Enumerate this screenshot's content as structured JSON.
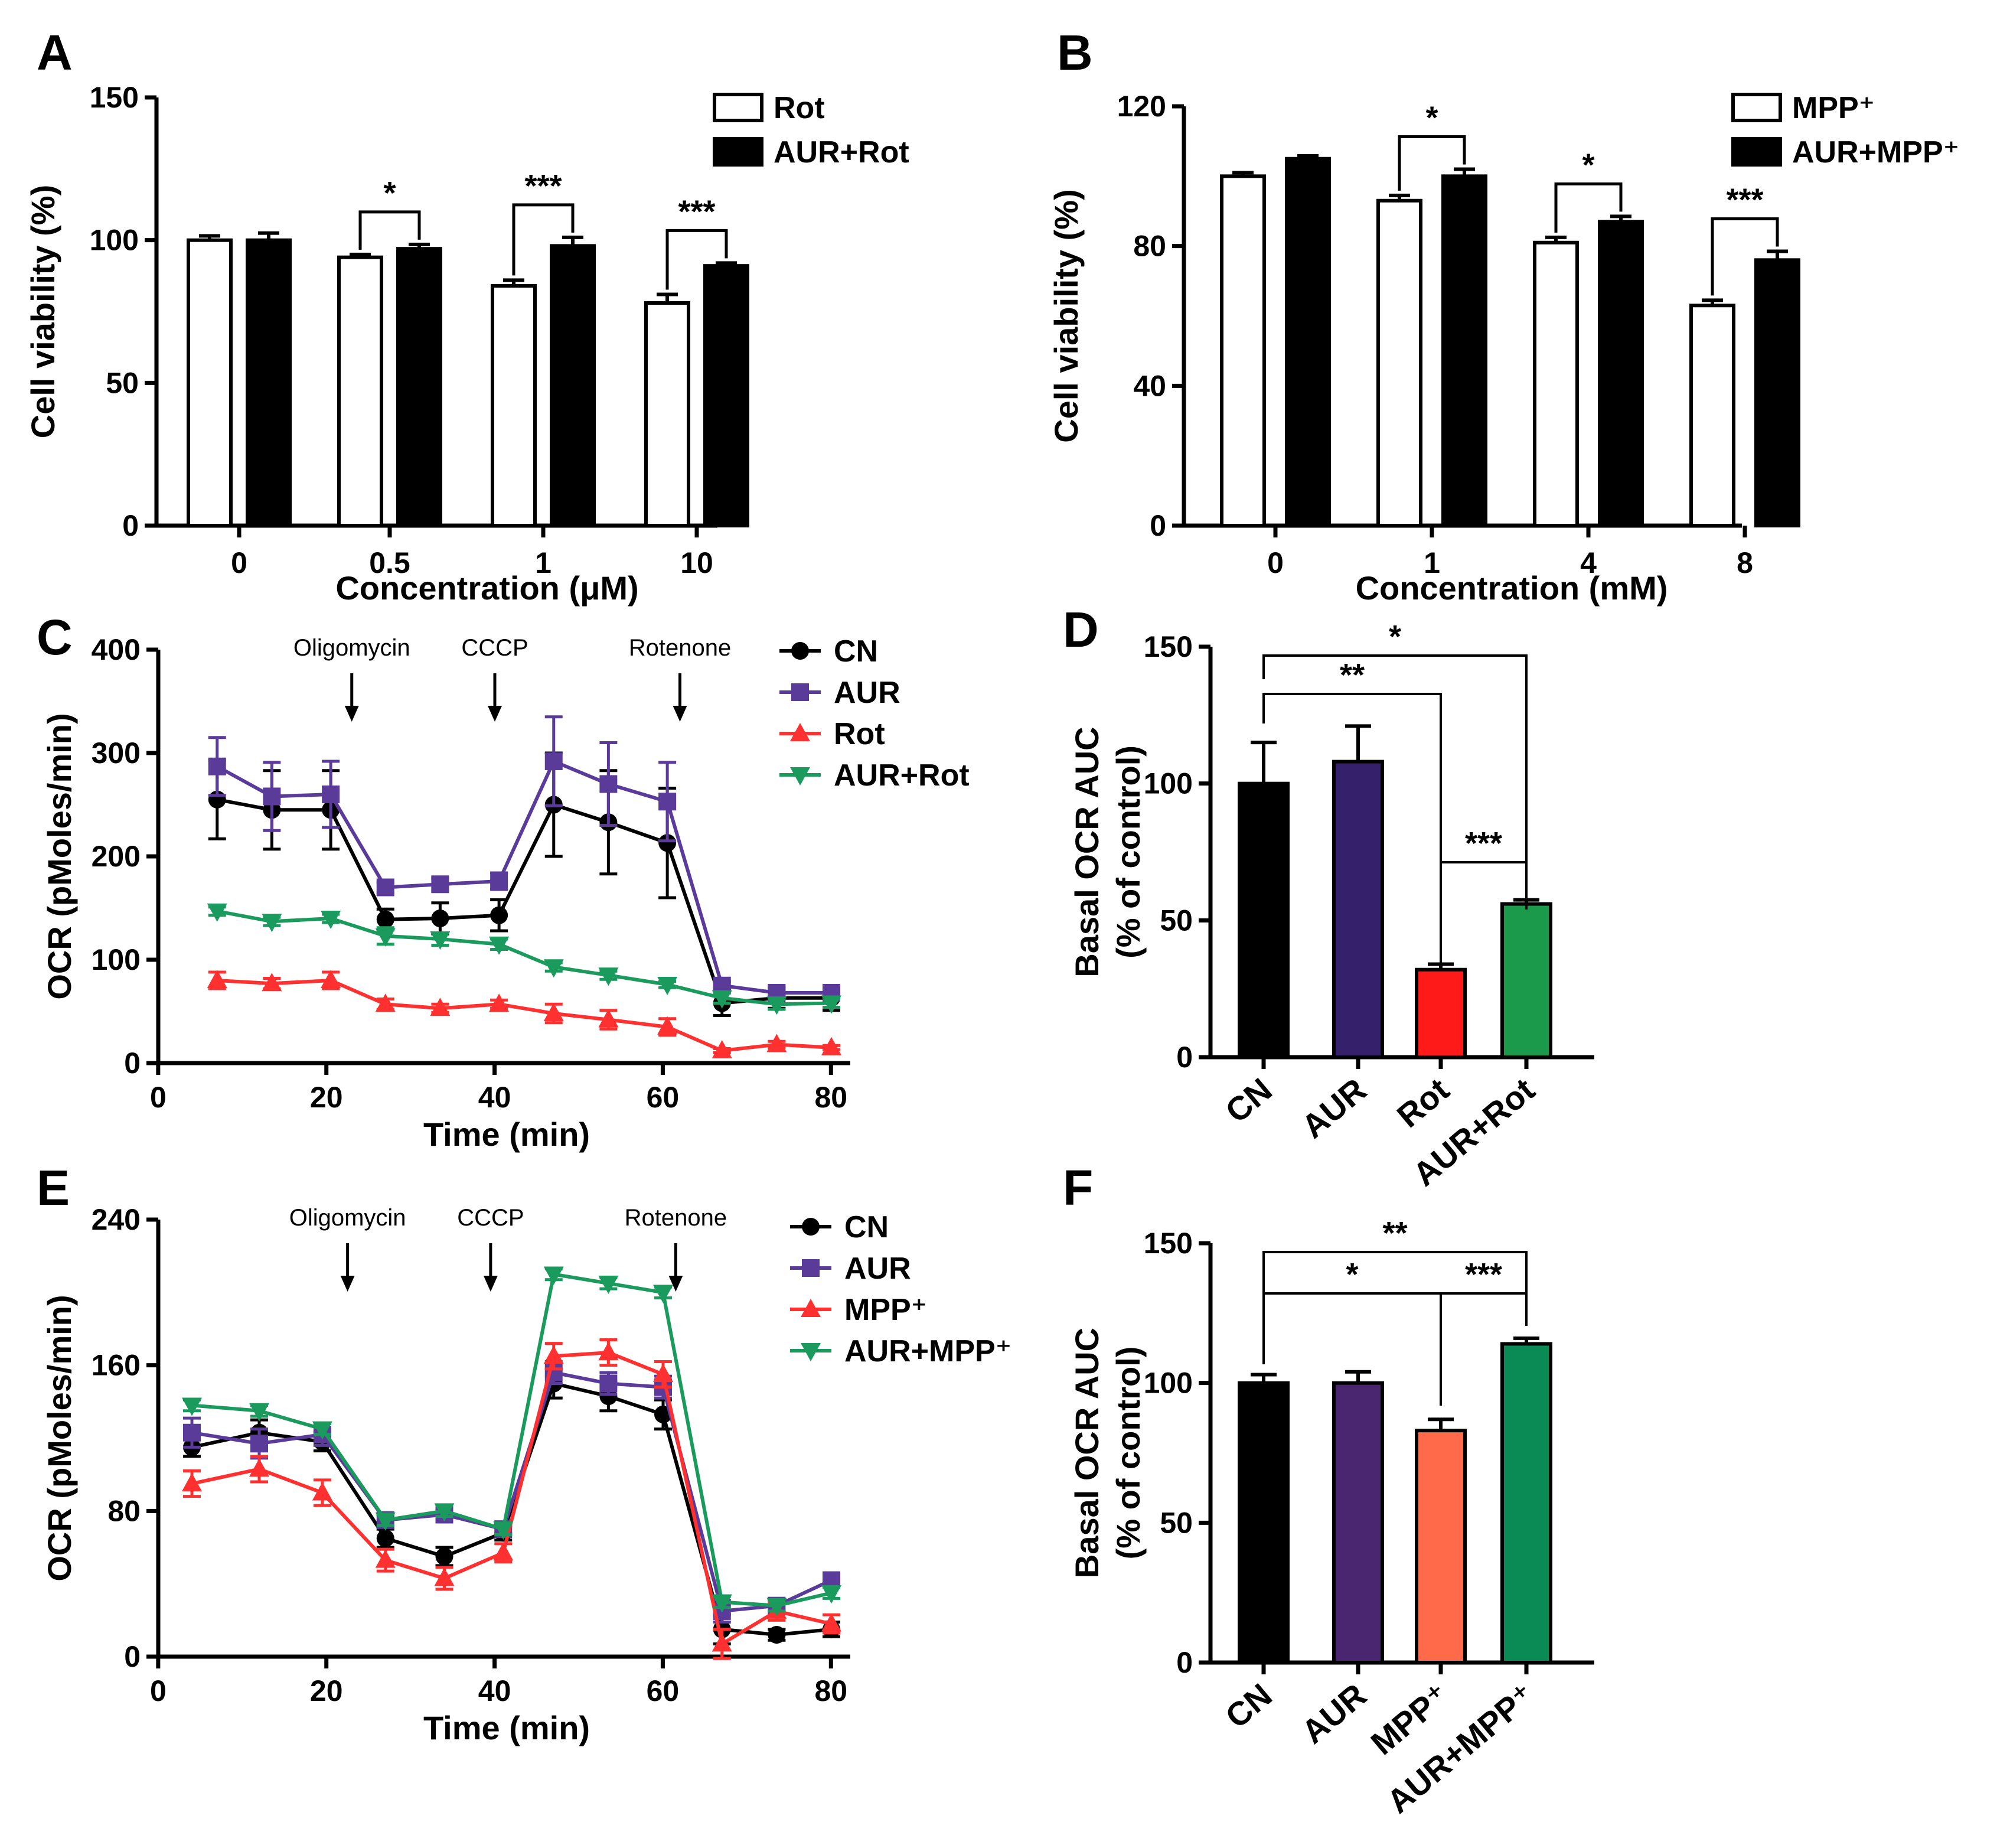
{
  "chart_data": [
    {
      "panel": "A",
      "type": "bar",
      "ylabel": "Cell viability (%)",
      "xlabel": "Concentration (μM)",
      "ylim": [
        0,
        150
      ],
      "yticks": [
        0,
        50,
        100,
        150
      ],
      "categories": [
        "0",
        "0.5",
        "1",
        "10"
      ],
      "series": [
        {
          "name": "Rot",
          "fill": "#ffffff",
          "values": [
            100,
            94,
            84,
            78
          ],
          "errors": [
            1.5,
            1,
            2,
            3
          ]
        },
        {
          "name": "AUR+Rot",
          "fill": "#000000",
          "values": [
            100,
            97,
            98,
            91
          ],
          "errors": [
            2.5,
            1.5,
            3,
            1
          ]
        }
      ],
      "comparisons": [
        {
          "group": 1,
          "label": "*"
        },
        {
          "group": 2,
          "label": "***"
        },
        {
          "group": 3,
          "label": "***"
        }
      ]
    },
    {
      "panel": "B",
      "type": "bar",
      "ylabel": "Cell viability (%)",
      "xlabel": "Concentration (mM)",
      "ylim": [
        0,
        120
      ],
      "yticks": [
        0,
        40,
        80,
        120
      ],
      "categories": [
        "0",
        "1",
        "4",
        "8"
      ],
      "series": [
        {
          "name": "MPP⁺",
          "fill": "#ffffff",
          "values": [
            100,
            93,
            81,
            63
          ],
          "errors": [
            1,
            1.5,
            1.5,
            1.5
          ]
        },
        {
          "name": "AUR+MPP⁺",
          "fill": "#000000",
          "values": [
            105,
            100,
            87,
            76
          ],
          "errors": [
            0.8,
            2,
            1.5,
            2.5
          ]
        }
      ],
      "comparisons": [
        {
          "group": 1,
          "label": "*"
        },
        {
          "group": 2,
          "label": "*"
        },
        {
          "group": 3,
          "label": "***"
        }
      ]
    },
    {
      "panel": "C",
      "type": "line",
      "ylabel": "OCR (pMoles/min)",
      "xlabel": "Time (min)",
      "xlim": [
        0,
        80
      ],
      "xticks": [
        0,
        20,
        40,
        60,
        80
      ],
      "ylim": [
        0,
        400
      ],
      "yticks": [
        0,
        100,
        200,
        300,
        400
      ],
      "injections": [
        {
          "label": "Oligomycin",
          "x": 23
        },
        {
          "label": "CCCP",
          "x": 40
        },
        {
          "label": "Rotenone",
          "x": 62
        }
      ],
      "x": [
        7,
        13.5,
        20.5,
        27,
        33.5,
        40.5,
        47,
        53.5,
        60.5,
        67,
        73.5,
        80
      ],
      "series": [
        {
          "name": "CN",
          "color": "#000000",
          "marker": "circle",
          "values": [
            255,
            245,
            245,
            139,
            140,
            143,
            250,
            233,
            213,
            58,
            63,
            63
          ],
          "errors": [
            38,
            38,
            38,
            10,
            15,
            15,
            50,
            50,
            53,
            12,
            10,
            12
          ]
        },
        {
          "name": "AUR",
          "color": "#5b3b9a",
          "marker": "square",
          "values": [
            287,
            258,
            260,
            170,
            173,
            176,
            292,
            270,
            253,
            75,
            68,
            68
          ],
          "errors": [
            28,
            33,
            32,
            5,
            6,
            8,
            43,
            40,
            38,
            4,
            3,
            3
          ]
        },
        {
          "name": "Rot",
          "color": "#ff3030",
          "marker": "tri-up",
          "values": [
            80,
            77,
            80,
            57,
            53,
            57,
            48,
            42,
            35,
            12,
            18,
            15
          ],
          "errors": [
            8,
            5,
            8,
            5,
            4,
            4,
            9,
            9,
            8,
            2,
            3,
            2
          ]
        },
        {
          "name": "AUR+Rot",
          "color": "#1a9a5c",
          "marker": "tri-down",
          "values": [
            147,
            137,
            140,
            123,
            120,
            115,
            93,
            85,
            76,
            63,
            57,
            58
          ],
          "errors": [
            4,
            4,
            4,
            8,
            6,
            5,
            4,
            4,
            3,
            5,
            5,
            4
          ]
        }
      ]
    },
    {
      "panel": "D",
      "type": "bar",
      "ylabel": "Basal OCR AUC",
      "ylabel2": "(% of control)",
      "ylim": [
        0,
        150
      ],
      "yticks": [
        0,
        50,
        100,
        150
      ],
      "categories": [
        "CN",
        "AUR",
        "Rot",
        "AUR+Rot"
      ],
      "values": [
        100,
        108,
        32,
        56
      ],
      "errors": [
        15,
        13,
        2,
        1.5
      ],
      "colors": [
        "#000000",
        "#35216b",
        "#ff1a1a",
        "#1a9a4a"
      ],
      "comparisons": [
        {
          "from": 0,
          "to": 3,
          "label": "*"
        },
        {
          "from": 0,
          "to": 2,
          "label": "**"
        },
        {
          "from": 2,
          "to": 3,
          "label": "***"
        }
      ]
    },
    {
      "panel": "E",
      "type": "line",
      "ylabel": "OCR (pMoles/min)",
      "xlabel": "Time (min)",
      "xlim": [
        0,
        80
      ],
      "xticks": [
        0,
        20,
        40,
        60,
        80
      ],
      "ylim": [
        0,
        240
      ],
      "yticks": [
        0,
        80,
        160,
        240
      ],
      "injections": [
        {
          "label": "Oligomycin",
          "x": 22.5
        },
        {
          "label": "CCCP",
          "x": 39.5
        },
        {
          "label": "Rotenone",
          "x": 61.5
        }
      ],
      "x": [
        4,
        12,
        19.5,
        27,
        34,
        41,
        47,
        53.5,
        60,
        67,
        73.5,
        80
      ],
      "series": [
        {
          "name": "CN",
          "color": "#000000",
          "marker": "circle",
          "values": [
            115,
            123,
            118,
            65,
            55,
            68,
            150,
            143,
            133,
            15,
            12,
            15
          ],
          "errors": [
            5,
            7,
            5,
            5,
            5,
            4,
            8,
            8,
            8,
            8,
            3,
            4
          ]
        },
        {
          "name": "AUR",
          "color": "#5b3b9a",
          "marker": "square",
          "values": [
            123,
            117,
            122,
            75,
            78,
            70,
            156,
            150,
            148,
            25,
            28,
            42
          ],
          "errors": [
            8,
            8,
            6,
            3,
            3,
            3,
            6,
            6,
            6,
            6,
            3,
            3
          ]
        },
        {
          "name": "MPP⁺",
          "color": "#ff3030",
          "marker": "tri-up",
          "values": [
            95,
            103,
            90,
            53,
            43,
            57,
            165,
            167,
            155,
            7,
            25,
            18
          ],
          "errors": [
            7,
            7,
            7,
            6,
            6,
            5,
            7,
            7,
            7,
            8,
            5,
            5
          ]
        },
        {
          "name": "AUR+MPP⁺",
          "color": "#1a9a5c",
          "marker": "tri-down",
          "values": [
            138,
            135,
            125,
            75,
            80,
            70,
            210,
            205,
            200,
            30,
            28,
            35
          ],
          "errors": [
            3,
            3,
            3,
            3,
            3,
            3,
            3,
            3,
            3,
            3,
            3,
            3
          ]
        }
      ]
    },
    {
      "panel": "F",
      "type": "bar",
      "ylabel": "Basal OCR AUC",
      "ylabel2": "(% of control)",
      "ylim": [
        0,
        150
      ],
      "yticks": [
        0,
        50,
        100,
        150
      ],
      "categories": [
        "CN",
        "AUR",
        "MPP⁺",
        "AUR+MPP⁺"
      ],
      "values": [
        100,
        100,
        83,
        114
      ],
      "errors": [
        3,
        4,
        4,
        2
      ],
      "colors": [
        "#000000",
        "#4a2670",
        "#ff6a4a",
        "#0a8a55"
      ],
      "comparisons": [
        {
          "from": 0,
          "to": 3,
          "label": "**"
        },
        {
          "from": 0,
          "to": 2,
          "label": "*"
        },
        {
          "from": 2,
          "to": 3,
          "label": "***"
        }
      ]
    }
  ]
}
